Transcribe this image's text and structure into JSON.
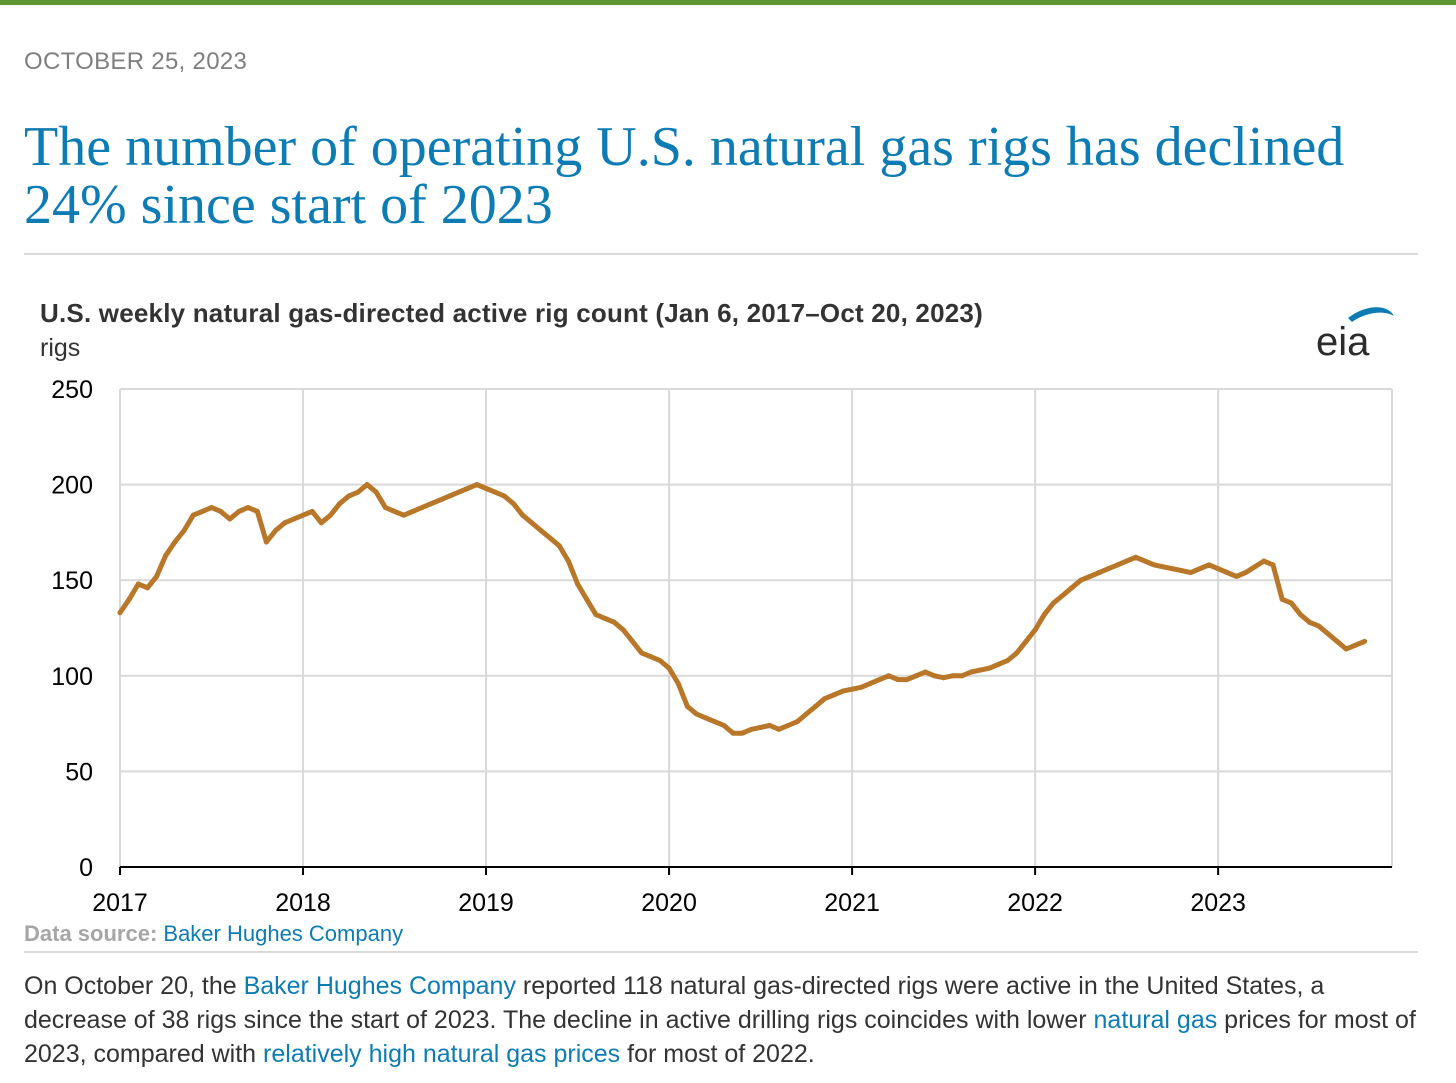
{
  "page": {
    "date": "OCTOBER 25, 2023",
    "headline": "The number of operating U.S. natural gas rigs has declined 24% since start of 2023",
    "accent_color": "#0e7cb4",
    "top_bar_color": "#5e9732"
  },
  "logo": {
    "text": "eia",
    "icon": "eia-logo"
  },
  "source": {
    "label": "Data source: ",
    "link_text": "Baker Hughes Company"
  },
  "body": {
    "t1": "On October 20, the ",
    "link1": "Baker Hughes Company",
    "t2": " reported 118 natural gas-directed rigs were active in the United States, a decrease of 38 rigs since the start of 2023. The decline in active drilling rigs coincides with lower ",
    "link2": "natural gas",
    "t3": " prices for most of 2023, compared with ",
    "link3": "relatively high natural gas prices",
    "t4": " for most of 2022."
  },
  "chart_data": {
    "type": "line",
    "title": "U.S. weekly natural gas-directed active rig count (Jan 6, 2017–Oct 20, 2023)",
    "ylabel": "rigs",
    "xlabel": "",
    "ylim": [
      0,
      250
    ],
    "xlim": [
      2017.0,
      2023.95
    ],
    "yticks": [
      0,
      50,
      100,
      150,
      200,
      250
    ],
    "xticks": [
      2017,
      2018,
      2019,
      2020,
      2021,
      2022,
      2023
    ],
    "grid": true,
    "line_color": "#b87729",
    "series": [
      {
        "x": [
          2017.0,
          2017.05,
          2017.1,
          2017.15,
          2017.2,
          2017.25,
          2017.3,
          2017.35,
          2017.4,
          2017.45,
          2017.5,
          2017.55,
          2017.6,
          2017.65,
          2017.7,
          2017.75,
          2017.8,
          2017.85,
          2017.9,
          2017.95,
          2018.0,
          2018.05,
          2018.1,
          2018.15,
          2018.2,
          2018.25,
          2018.3,
          2018.35,
          2018.4,
          2018.45,
          2018.5,
          2018.55,
          2018.6,
          2018.65,
          2018.7,
          2018.75,
          2018.8,
          2018.85,
          2018.9,
          2018.95,
          2019.0,
          2019.05,
          2019.1,
          2019.15,
          2019.2,
          2019.25,
          2019.3,
          2019.35,
          2019.4,
          2019.45,
          2019.5,
          2019.55,
          2019.6,
          2019.65,
          2019.7,
          2019.75,
          2019.8,
          2019.85,
          2019.9,
          2019.95,
          2020.0,
          2020.05,
          2020.1,
          2020.15,
          2020.2,
          2020.25,
          2020.3,
          2020.35,
          2020.4,
          2020.45,
          2020.5,
          2020.55,
          2020.6,
          2020.65,
          2020.7,
          2020.75,
          2020.8,
          2020.85,
          2020.9,
          2020.95,
          2021.0,
          2021.05,
          2021.1,
          2021.15,
          2021.2,
          2021.25,
          2021.3,
          2021.35,
          2021.4,
          2021.45,
          2021.5,
          2021.55,
          2021.6,
          2021.65,
          2021.7,
          2021.75,
          2021.8,
          2021.85,
          2021.9,
          2021.95,
          2022.0,
          2022.05,
          2022.1,
          2022.15,
          2022.2,
          2022.25,
          2022.3,
          2022.35,
          2022.4,
          2022.45,
          2022.5,
          2022.55,
          2022.6,
          2022.65,
          2022.7,
          2022.75,
          2022.8,
          2022.85,
          2022.9,
          2022.95,
          2023.0,
          2023.05,
          2023.1,
          2023.15,
          2023.2,
          2023.25,
          2023.3,
          2023.35,
          2023.4,
          2023.45,
          2023.5,
          2023.55,
          2023.6,
          2023.65,
          2023.7,
          2023.75,
          2023.8
        ],
        "y": [
          133,
          140,
          148,
          146,
          152,
          163,
          170,
          176,
          184,
          186,
          188,
          186,
          182,
          186,
          188,
          186,
          170,
          176,
          180,
          182,
          184,
          186,
          180,
          184,
          190,
          194,
          196,
          200,
          196,
          188,
          186,
          184,
          186,
          188,
          190,
          192,
          194,
          196,
          198,
          200,
          198,
          196,
          194,
          190,
          184,
          180,
          176,
          172,
          168,
          160,
          148,
          140,
          132,
          130,
          128,
          124,
          118,
          112,
          110,
          108,
          104,
          96,
          84,
          80,
          78,
          76,
          74,
          70,
          70,
          72,
          73,
          74,
          72,
          74,
          76,
          80,
          84,
          88,
          90,
          92,
          93,
          94,
          96,
          98,
          100,
          98,
          98,
          100,
          102,
          100,
          99,
          100,
          100,
          102,
          103,
          104,
          106,
          108,
          112,
          118,
          124,
          132,
          138,
          142,
          146,
          150,
          152,
          154,
          156,
          158,
          160,
          162,
          160,
          158,
          157,
          156,
          155,
          154,
          156,
          158,
          156,
          154,
          152,
          154,
          157,
          160,
          158,
          140,
          138,
          132,
          128,
          126,
          122,
          118,
          114,
          116,
          118
        ]
      }
    ]
  }
}
